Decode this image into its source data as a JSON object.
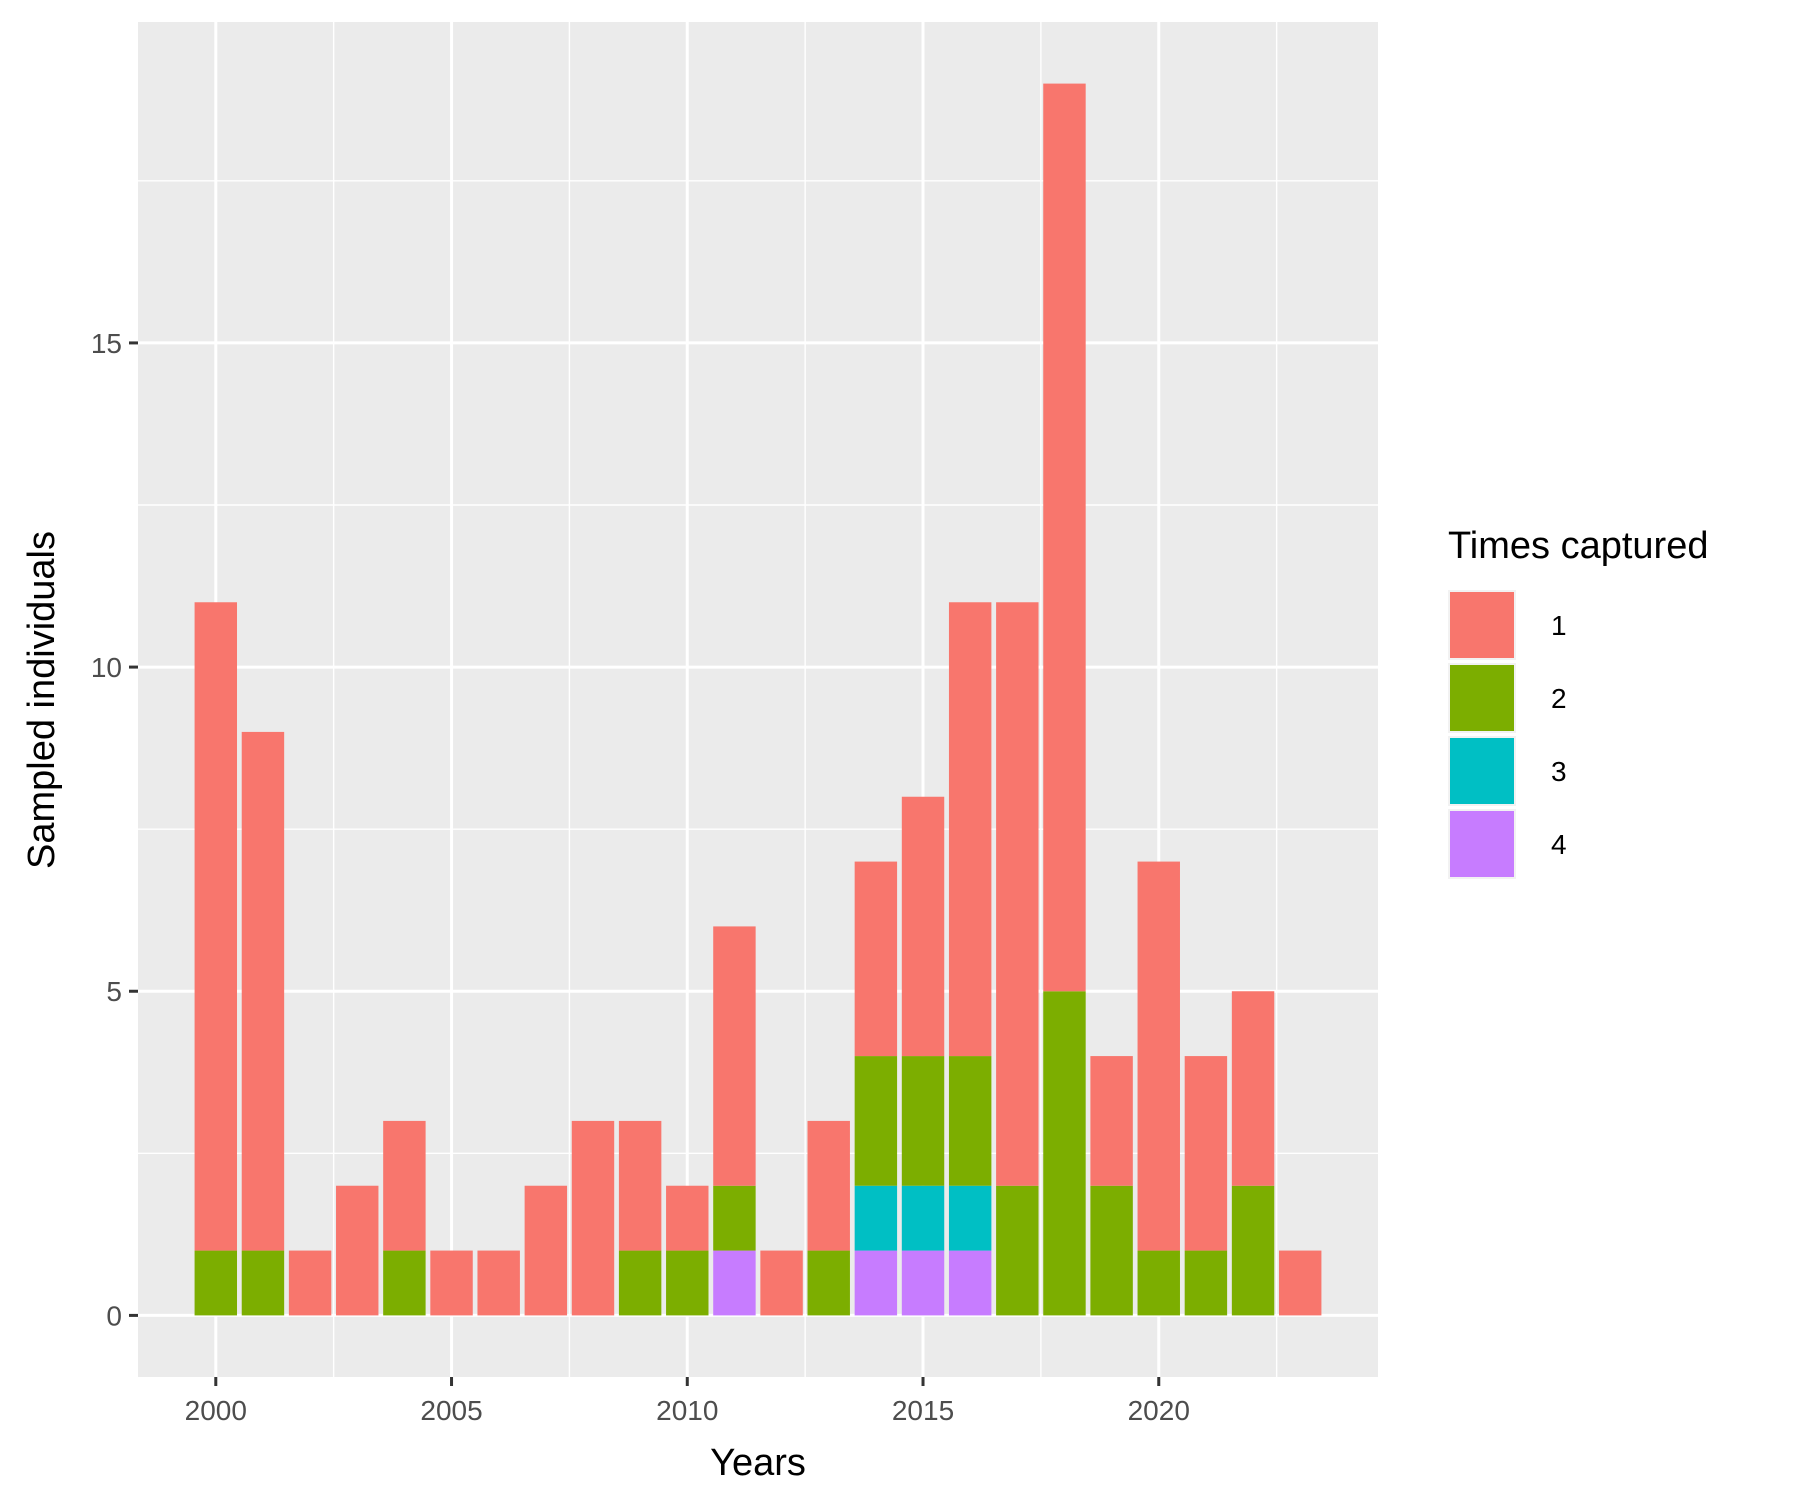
{
  "chart_data": {
    "type": "bar",
    "stacked": true,
    "xlabel": "Years",
    "ylabel": "Sampled individuals",
    "x": [
      2000,
      2001,
      2002,
      2003,
      2004,
      2005,
      2006,
      2007,
      2008,
      2009,
      2010,
      2011,
      2012,
      2013,
      2014,
      2015,
      2016,
      2017,
      2018,
      2019,
      2020,
      2021,
      2022,
      2023
    ],
    "x_ticks": [
      2000,
      2005,
      2010,
      2015,
      2020
    ],
    "x_tick_labels": [
      "2000",
      "2005",
      "2010",
      "2015",
      "2020"
    ],
    "xlim": [
      1998.35,
      2024.65
    ],
    "y_ticks": [
      0,
      5,
      10,
      15
    ],
    "y_tick_labels": [
      "0",
      "5",
      "10",
      "15"
    ],
    "ylim": [
      -0.95,
      19.95
    ],
    "grid": true,
    "legend": {
      "title": "Times captured",
      "position": "right"
    },
    "series": [
      {
        "name": "1",
        "color": "#F8766D",
        "values": [
          10,
          8,
          1,
          2,
          2,
          1,
          1,
          2,
          3,
          2,
          1,
          4,
          1,
          2,
          3,
          4,
          7,
          9,
          14,
          2,
          6,
          3,
          3,
          1
        ]
      },
      {
        "name": "2",
        "color": "#7CAE00",
        "values": [
          1,
          1,
          0,
          0,
          1,
          0,
          0,
          0,
          0,
          1,
          1,
          1,
          0,
          1,
          2,
          2,
          2,
          2,
          5,
          2,
          1,
          1,
          2,
          0
        ]
      },
      {
        "name": "3",
        "color": "#00BFC4",
        "values": [
          0,
          0,
          0,
          0,
          0,
          0,
          0,
          0,
          0,
          0,
          0,
          0,
          0,
          0,
          1,
          1,
          1,
          0,
          0,
          0,
          0,
          0,
          0,
          0
        ]
      },
      {
        "name": "4",
        "color": "#C77CFF",
        "values": [
          0,
          0,
          0,
          0,
          0,
          0,
          0,
          0,
          0,
          0,
          0,
          1,
          0,
          0,
          1,
          1,
          1,
          0,
          0,
          0,
          0,
          0,
          0,
          0
        ]
      }
    ]
  }
}
